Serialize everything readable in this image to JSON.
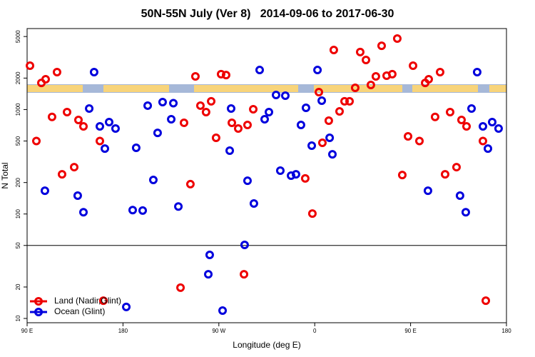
{
  "chart_data": {
    "type": "scatter",
    "title": "50N-55N July (Ver 8)   2014-09-06 to 2017-06-30",
    "x_label": "Longitude (deg E)",
    "y_label": "N Total",
    "xlim": [
      90,
      540
    ],
    "xticks": [
      {
        "value": 90,
        "label": "90 E"
      },
      {
        "value": 180,
        "label": "180"
      },
      {
        "value": 270,
        "label": "90 W"
      },
      {
        "value": 360,
        "label": "0"
      },
      {
        "value": 450,
        "label": "90 E"
      },
      {
        "value": 540,
        "label": "180"
      }
    ],
    "ylim": [
      9.1,
      5960
    ],
    "y_scale": "log",
    "yticks": [
      10,
      20,
      50,
      100,
      200,
      500,
      1000,
      2000,
      5000
    ],
    "hline": 50,
    "legend": "lower left",
    "series": [
      {
        "name": "Land (Nadir,Glint)",
        "color": "#ee0000",
        "x": [
          92.7,
          98.7,
          103.4,
          107.4,
          113.4,
          118.1,
          122.8,
          127.5,
          134.2,
          138.2,
          142.9,
          158.3,
          161.6,
          234.0,
          237.3,
          243.3,
          248.0,
          252.7,
          258.0,
          262.8,
          267.4,
          272.1,
          276.8,
          282.2,
          288.2,
          293.6,
          296.9,
          302.3,
          351.1,
          357.8,
          363.9,
          367.2,
          373.2,
          377.9,
          383.3,
          388.0,
          392.7,
          398.0,
          402.7,
          408.1,
          412.7,
          417.4,
          422.8,
          427.5,
          432.8,
          437.5,
          442.2,
          447.6,
          452.3,
          458.3,
          463.7,
          467.0,
          473.0,
          477.7,
          482.4,
          487.1,
          493.1,
          497.8,
          502.5,
          517.9,
          520.6
        ],
        "values": [
          2630,
          500,
          1800,
          1950,
          850,
          2280,
          240,
          945,
          281,
          795,
          690,
          500,
          14.8,
          19.7,
          747,
          193,
          2075,
          1090,
          945,
          1200,
          536,
          2180,
          2140,
          747,
          658,
          26.5,
          712,
          1006,
          219,
          101,
          1468,
          480,
          782,
          3715,
          960,
          1200,
          1200,
          1615,
          3550,
          2980,
          1720,
          2075,
          4080,
          2110,
          2180,
          4780,
          236,
          553,
          2630,
          500,
          1800,
          1950,
          850,
          2280,
          240,
          945,
          281,
          795,
          690,
          500,
          14.8
        ]
      },
      {
        "name": "Ocean (Glint)",
        "color": "#0000dd",
        "x": [
          106.7,
          137.5,
          142.9,
          148.3,
          152.9,
          158.3,
          163.0,
          167.0,
          173.0,
          183.1,
          189.1,
          192.4,
          198.5,
          203.2,
          208.5,
          212.5,
          217.2,
          225.3,
          227.3,
          232.0,
          260.1,
          261.4,
          273.5,
          280.2,
          281.5,
          294.2,
          296.9,
          302.9,
          308.3,
          313.0,
          317.0,
          323.7,
          327.7,
          332.4,
          337.8,
          342.4,
          347.1,
          351.8,
          357.2,
          362.6,
          366.6,
          374.0,
          376.6,
          466.3,
          496.4,
          501.8,
          507.2,
          512.5,
          517.9,
          522.6,
          526.6,
          532.6
        ],
        "values": [
          167,
          150,
          104,
          1023,
          2280,
          690,
          423,
          758,
          658,
          12.9,
          109,
          430,
          108,
          1090,
          212,
          598,
          1178,
          807,
          1150,
          118,
          26.5,
          40.6,
          11.9,
          404,
          1023,
          50.6,
          208,
          126,
          2390,
          807,
          945,
          1378,
          260,
          1357,
          233,
          240,
          712,
          1038,
          451,
          2390,
          1216,
          536,
          373,
          167,
          150,
          104,
          1023,
          2280,
          690,
          423,
          758,
          658
        ]
      }
    ]
  }
}
